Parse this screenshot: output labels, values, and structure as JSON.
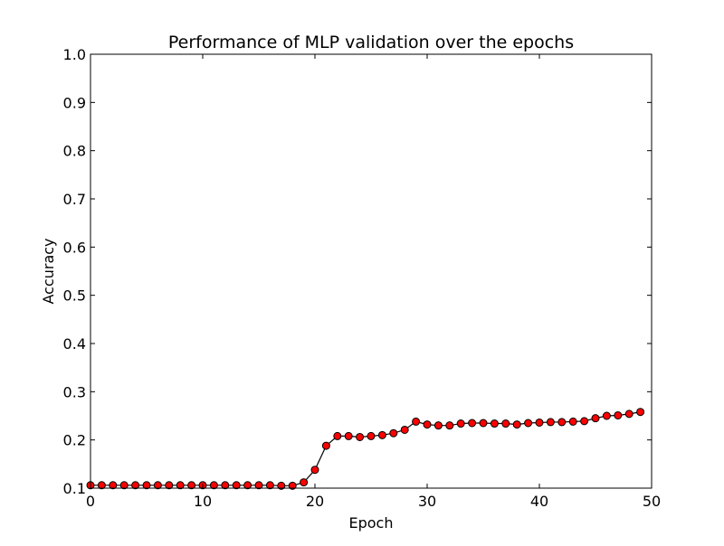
{
  "chart_data": {
    "type": "line",
    "title": "Performance of MLP validation over the epochs",
    "xlabel": "Epoch",
    "ylabel": "Accuracy",
    "xlim": [
      0,
      50
    ],
    "ylim": [
      0.1,
      1.0
    ],
    "xticks": [
      0,
      10,
      20,
      30,
      40,
      50
    ],
    "xtick_labels": [
      "0",
      "10",
      "20",
      "30",
      "40",
      "50"
    ],
    "yticks": [
      0.1,
      0.2,
      0.3,
      0.4,
      0.5,
      0.6,
      0.7,
      0.8,
      0.9,
      1.0
    ],
    "ytick_labels": [
      "0.1",
      "0.2",
      "0.3",
      "0.4",
      "0.5",
      "0.6",
      "0.7",
      "0.8",
      "0.9",
      "1.0"
    ],
    "grid": false,
    "legend": null,
    "series": [
      {
        "line_color": "#000000",
        "marker_color": "#ff0000",
        "marker": "circle",
        "x": [
          0,
          1,
          2,
          3,
          4,
          5,
          6,
          7,
          8,
          9,
          10,
          11,
          12,
          13,
          14,
          15,
          16,
          17,
          18,
          19,
          20,
          21,
          22,
          23,
          24,
          25,
          26,
          27,
          28,
          29,
          30,
          31,
          32,
          33,
          34,
          35,
          36,
          37,
          38,
          39,
          40,
          41,
          42,
          43,
          44,
          45,
          46,
          47,
          48,
          49
        ],
        "y": [
          0.106,
          0.106,
          0.106,
          0.106,
          0.106,
          0.106,
          0.106,
          0.106,
          0.106,
          0.106,
          0.106,
          0.106,
          0.106,
          0.106,
          0.106,
          0.106,
          0.106,
          0.105,
          0.105,
          0.112,
          0.138,
          0.188,
          0.208,
          0.208,
          0.206,
          0.208,
          0.21,
          0.214,
          0.221,
          0.238,
          0.232,
          0.23,
          0.23,
          0.234,
          0.235,
          0.235,
          0.234,
          0.234,
          0.232,
          0.235,
          0.236,
          0.237,
          0.237,
          0.238,
          0.239,
          0.245,
          0.25,
          0.251,
          0.254,
          0.258
        ]
      }
    ]
  }
}
